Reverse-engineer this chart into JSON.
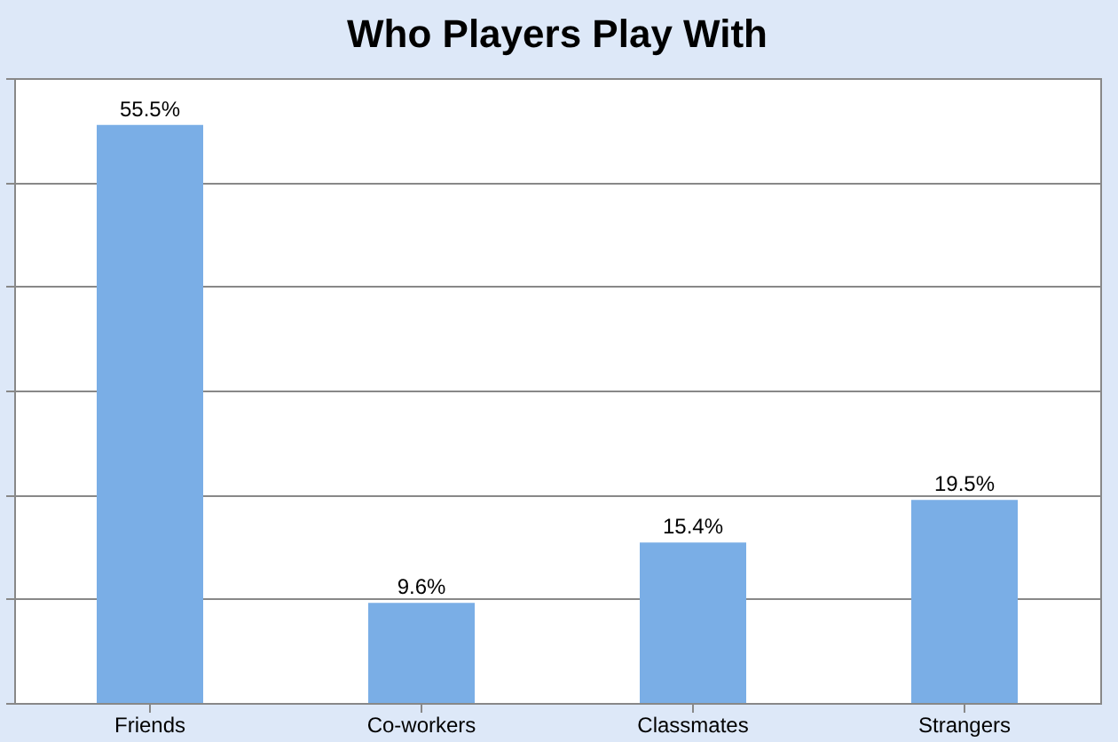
{
  "chart_data": {
    "type": "bar",
    "title": "Who Players Play With",
    "categories": [
      "Friends",
      "Co-workers",
      "Classmates",
      "Strangers"
    ],
    "values": [
      55.5,
      9.6,
      15.4,
      19.5
    ],
    "value_labels": [
      "55.5%",
      "9.6%",
      "15.4%",
      "19.5%"
    ],
    "color": "#7aaee6",
    "ylim": [
      0,
      60
    ],
    "yticks": [
      {
        "value": 0,
        "label": null
      },
      {
        "value": 10,
        "label": null
      },
      {
        "value": 20,
        "label": null
      },
      {
        "value": 30,
        "label": null
      },
      {
        "value": 40,
        "label": null
      },
      {
        "value": 50,
        "label": null
      },
      {
        "value": 60,
        "label": null
      }
    ],
    "tick_labels": "x",
    "grid": "y"
  }
}
